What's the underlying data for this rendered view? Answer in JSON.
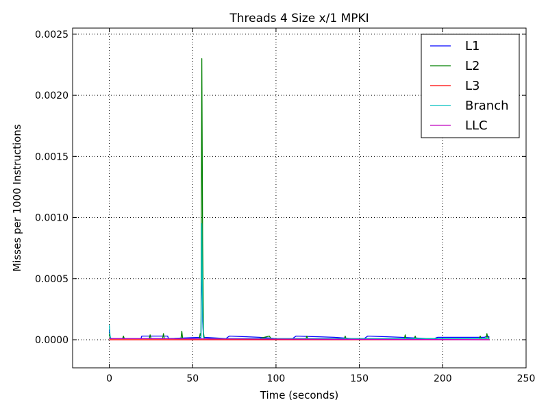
{
  "chart_data": {
    "type": "line",
    "title": "Threads 4 Size x/1 MPKI",
    "xlabel": "Time (seconds)",
    "ylabel": "Misses per 1000 Instructions",
    "xlim": [
      -22,
      250
    ],
    "ylim": [
      -0.00023,
      0.00255
    ],
    "xticks": [
      0,
      50,
      100,
      150,
      200,
      250
    ],
    "xtick_labels": [
      "0",
      "50",
      "100",
      "150",
      "200",
      "250"
    ],
    "yticks": [
      0.0,
      0.0005,
      0.001,
      0.0015,
      0.002,
      0.0025
    ],
    "ytick_labels": [
      "0.0000",
      "0.0005",
      "0.0010",
      "0.0015",
      "0.0020",
      "0.0025"
    ],
    "grid": true,
    "legend_position": "top-right",
    "series": [
      {
        "name": "L1",
        "color": "#0000ff",
        "points": [
          [
            0,
            8e-05
          ],
          [
            0.5,
            2e-05
          ],
          [
            1,
            1e-05
          ],
          [
            8,
            1e-05
          ],
          [
            8.5,
            2e-05
          ],
          [
            9,
            1e-05
          ],
          [
            19,
            1e-05
          ],
          [
            19.5,
            3e-05
          ],
          [
            35,
            3e-05
          ],
          [
            35.5,
            1e-05
          ],
          [
            55,
            2e-05
          ],
          [
            55.5,
            0.0008
          ],
          [
            56,
            0.00015
          ],
          [
            56.5,
            2e-05
          ],
          [
            70,
            1e-05
          ],
          [
            72,
            3e-05
          ],
          [
            90,
            2e-05
          ],
          [
            100,
            1e-05
          ],
          [
            110,
            1e-05
          ],
          [
            112,
            3e-05
          ],
          [
            135,
            2e-05
          ],
          [
            145,
            1e-05
          ],
          [
            153,
            1e-05
          ],
          [
            155,
            3e-05
          ],
          [
            175,
            2e-05
          ],
          [
            190,
            1e-05
          ],
          [
            195,
            1e-05
          ],
          [
            197,
            2e-05
          ],
          [
            225,
            2e-05
          ],
          [
            227,
            3e-05
          ],
          [
            228,
            2e-05
          ]
        ]
      },
      {
        "name": "L2",
        "color": "#008000",
        "points": [
          [
            0,
            5e-05
          ],
          [
            0.5,
            1e-05
          ],
          [
            8,
            1e-05
          ],
          [
            8.5,
            3e-05
          ],
          [
            9,
            1e-05
          ],
          [
            24,
            1e-05
          ],
          [
            24.5,
            4e-05
          ],
          [
            25,
            1e-05
          ],
          [
            32,
            1e-05
          ],
          [
            32.5,
            5e-05
          ],
          [
            33,
            1e-05
          ],
          [
            43,
            1e-05
          ],
          [
            43.5,
            7e-05
          ],
          [
            44,
            1e-05
          ],
          [
            54,
            1e-05
          ],
          [
            54.5,
            5e-05
          ],
          [
            55,
            3e-05
          ],
          [
            55.5,
            0.0023
          ],
          [
            56,
            0.0008
          ],
          [
            56.5,
            6e-05
          ],
          [
            57,
            1e-05
          ],
          [
            90,
            1e-05
          ],
          [
            96,
            3e-05
          ],
          [
            97,
            1e-05
          ],
          [
            118,
            1e-05
          ],
          [
            118.5,
            3e-05
          ],
          [
            119,
            1e-05
          ],
          [
            141,
            1e-05
          ],
          [
            141.5,
            3e-05
          ],
          [
            142,
            1e-05
          ],
          [
            177,
            1e-05
          ],
          [
            177.5,
            4e-05
          ],
          [
            178,
            1e-05
          ],
          [
            183,
            1e-05
          ],
          [
            183.5,
            3e-05
          ],
          [
            184,
            1e-05
          ],
          [
            222,
            1e-05
          ],
          [
            222.5,
            3e-05
          ],
          [
            223,
            1e-05
          ],
          [
            226,
            1e-05
          ],
          [
            226.5,
            5e-05
          ],
          [
            227,
            2e-05
          ],
          [
            228,
            1e-05
          ]
        ]
      },
      {
        "name": "L3",
        "color": "#ff0000",
        "points": [
          [
            0,
            0.0
          ],
          [
            228,
            0.0
          ]
        ]
      },
      {
        "name": "Branch",
        "color": "#00bfbf",
        "points": [
          [
            0,
            0.00012
          ],
          [
            0.5,
            3e-05
          ],
          [
            1,
            1e-05
          ],
          [
            55,
            1e-05
          ],
          [
            55.5,
            0.00095
          ],
          [
            56,
            0.0002
          ],
          [
            56.5,
            2e-05
          ],
          [
            57,
            1e-05
          ],
          [
            228,
            1e-05
          ]
        ]
      },
      {
        "name": "LLC",
        "color": "#bf00bf",
        "points": [
          [
            0,
            1e-05
          ],
          [
            228,
            0.0
          ]
        ]
      }
    ]
  }
}
